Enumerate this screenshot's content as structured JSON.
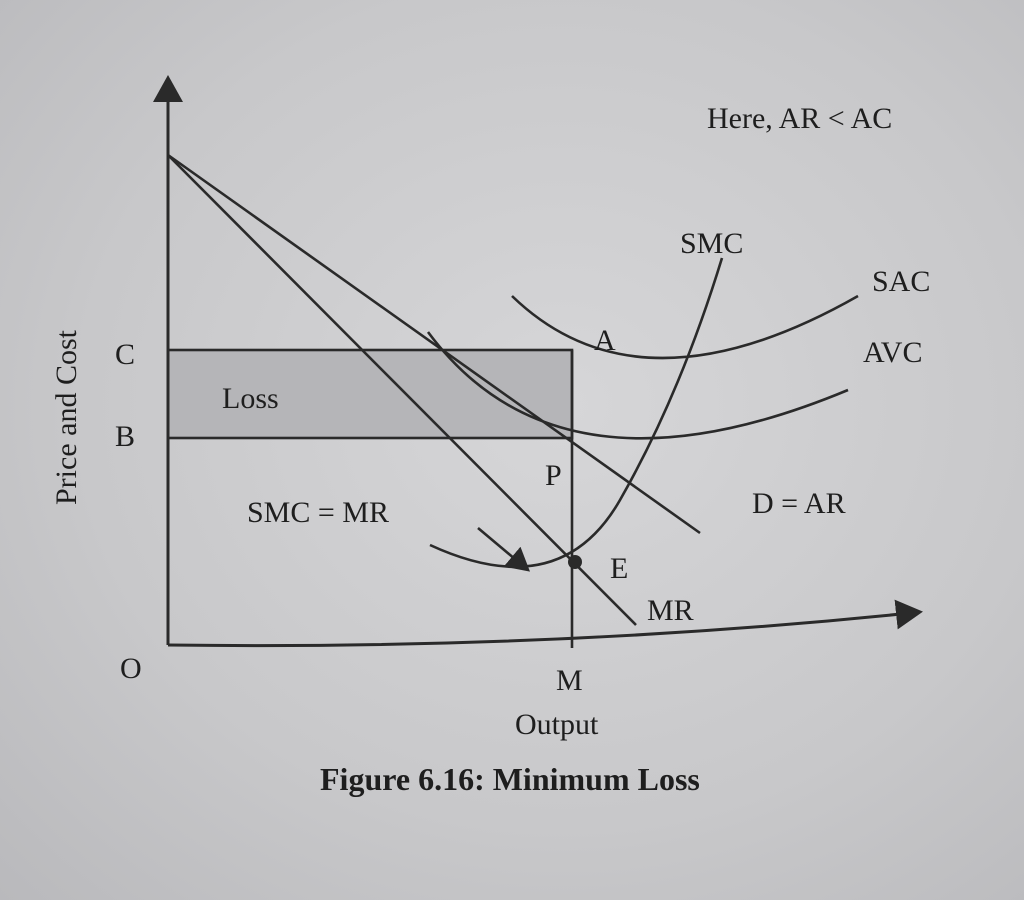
{
  "labels": {
    "note": "Here, AR < AC",
    "smc": "SMC",
    "sac": "SAC",
    "avc": "AVC",
    "point_a": "A",
    "point_p": "P",
    "point_e": "E",
    "demand": "D = AR",
    "mr": "MR",
    "equilibrium": "SMC = MR",
    "loss": "Loss",
    "c": "C",
    "b": "B",
    "origin": "O",
    "m": "M",
    "y_axis": "Price and Cost",
    "x_axis": "Output"
  },
  "caption": "Figure 6.16: Minimum Loss",
  "colors": {
    "ink": "#2a2a2a",
    "loss_fill": "#b5b5b8",
    "paper": "#cfcfd1"
  }
}
